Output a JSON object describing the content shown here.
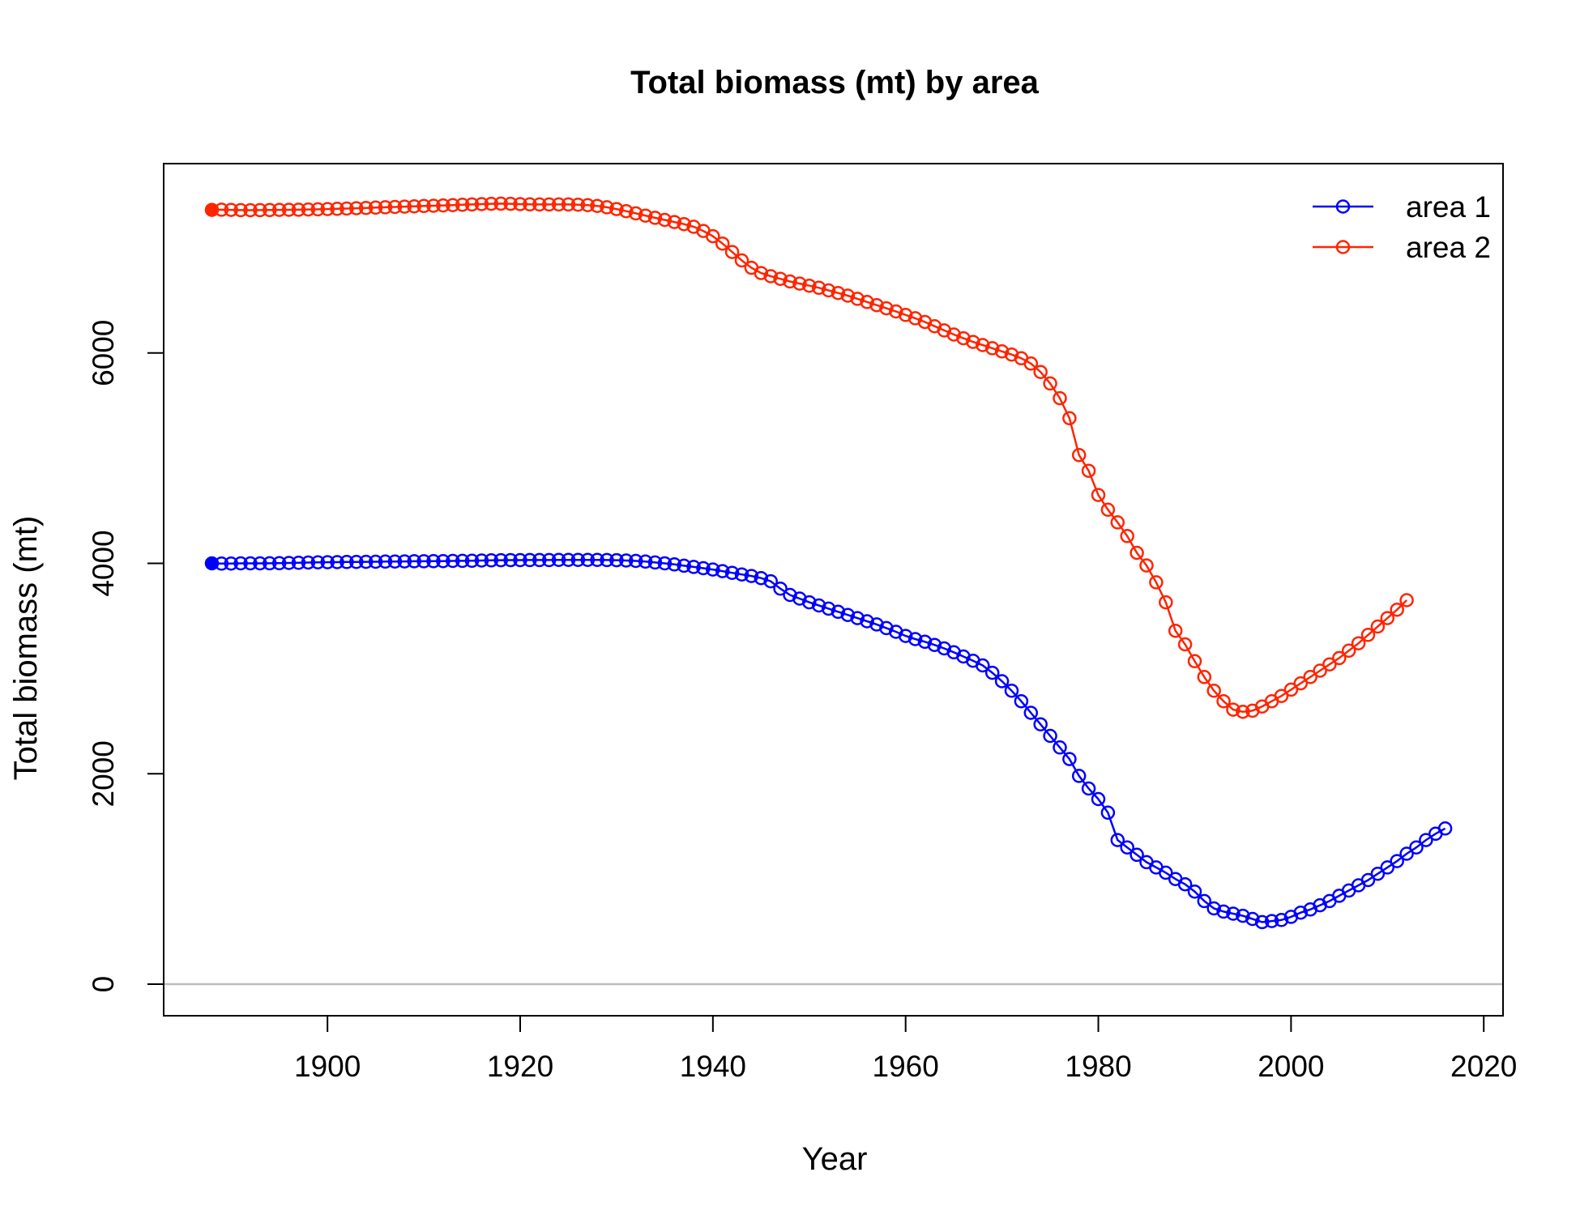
{
  "chart_data": {
    "type": "line",
    "title": "Total biomass (mt) by area",
    "xlabel": "Year",
    "ylabel": "Total biomass (mt)",
    "xlim": [
      1883,
      2022
    ],
    "ylim": [
      -300,
      7800
    ],
    "xticks": [
      1900,
      1920,
      1940,
      1960,
      1980,
      2000,
      2020
    ],
    "yticks": [
      0,
      2000,
      4000,
      6000
    ],
    "reference_line": {
      "y": 0,
      "color": "#bebebe"
    },
    "legend_position": "top-right",
    "first_point_filled": true,
    "series": [
      {
        "name": "area 1",
        "color": "#0000ff",
        "x_start": 1888,
        "values": [
          4000,
          3998,
          3999,
          4000,
          4000,
          4000,
          4001,
          4002,
          4004,
          4006,
          4008,
          4010,
          4011,
          4012,
          4013,
          4014,
          4015,
          4016,
          4017,
          4018,
          4019,
          4020,
          4020,
          4021,
          4022,
          4023,
          4024,
          4025,
          4027,
          4029,
          4030,
          4031,
          4031,
          4032,
          4032,
          4032,
          4033,
          4033,
          4033,
          4033,
          4033,
          4032,
          4030,
          4027,
          4023,
          4017,
          4009,
          4000,
          3990,
          3978,
          3966,
          3954,
          3942,
          3926,
          3910,
          3895,
          3880,
          3860,
          3830,
          3760,
          3700,
          3665,
          3630,
          3600,
          3570,
          3540,
          3510,
          3480,
          3450,
          3420,
          3385,
          3350,
          3310,
          3280,
          3255,
          3225,
          3192,
          3155,
          3115,
          3075,
          3030,
          2960,
          2880,
          2790,
          2690,
          2580,
          2470,
          2360,
          2250,
          2140,
          1980,
          1860,
          1760,
          1630,
          1370,
          1300,
          1230,
          1160,
          1110,
          1060,
          1000,
          950,
          880,
          790,
          720,
          690,
          670,
          650,
          620,
          590,
          600,
          610,
          640,
          680,
          710,
          750,
          790,
          840,
          890,
          940,
          990,
          1050,
          1110,
          1170,
          1240,
          1300,
          1370,
          1430,
          1480
        ]
      },
      {
        "name": "area 2",
        "color": "#ff2500",
        "x_start": 1888,
        "values": [
          7360,
          7362,
          7360,
          7358,
          7357,
          7358,
          7359,
          7360,
          7361,
          7362,
          7364,
          7366,
          7368,
          7370,
          7373,
          7376,
          7379,
          7382,
          7385,
          7388,
          7391,
          7394,
          7397,
          7400,
          7403,
          7406,
          7409,
          7412,
          7415,
          7418,
          7420,
          7418,
          7415,
          7413,
          7412,
          7412,
          7412,
          7412,
          7410,
          7406,
          7398,
          7385,
          7368,
          7348,
          7327,
          7306,
          7285,
          7265,
          7245,
          7225,
          7200,
          7160,
          7110,
          7040,
          6960,
          6880,
          6810,
          6760,
          6730,
          6705,
          6680,
          6660,
          6640,
          6620,
          6595,
          6570,
          6545,
          6515,
          6485,
          6455,
          6425,
          6395,
          6362,
          6330,
          6295,
          6255,
          6215,
          6175,
          6140,
          6105,
          6075,
          6045,
          6015,
          5985,
          5950,
          5900,
          5820,
          5710,
          5570,
          5380,
          5030,
          4880,
          4650,
          4510,
          4390,
          4260,
          4100,
          3980,
          3820,
          3630,
          3360,
          3230,
          3070,
          2920,
          2790,
          2690,
          2610,
          2590,
          2600,
          2640,
          2690,
          2740,
          2800,
          2860,
          2920,
          2980,
          3040,
          3100,
          3170,
          3240,
          3320,
          3400,
          3480,
          3560,
          3650
        ]
      }
    ]
  }
}
